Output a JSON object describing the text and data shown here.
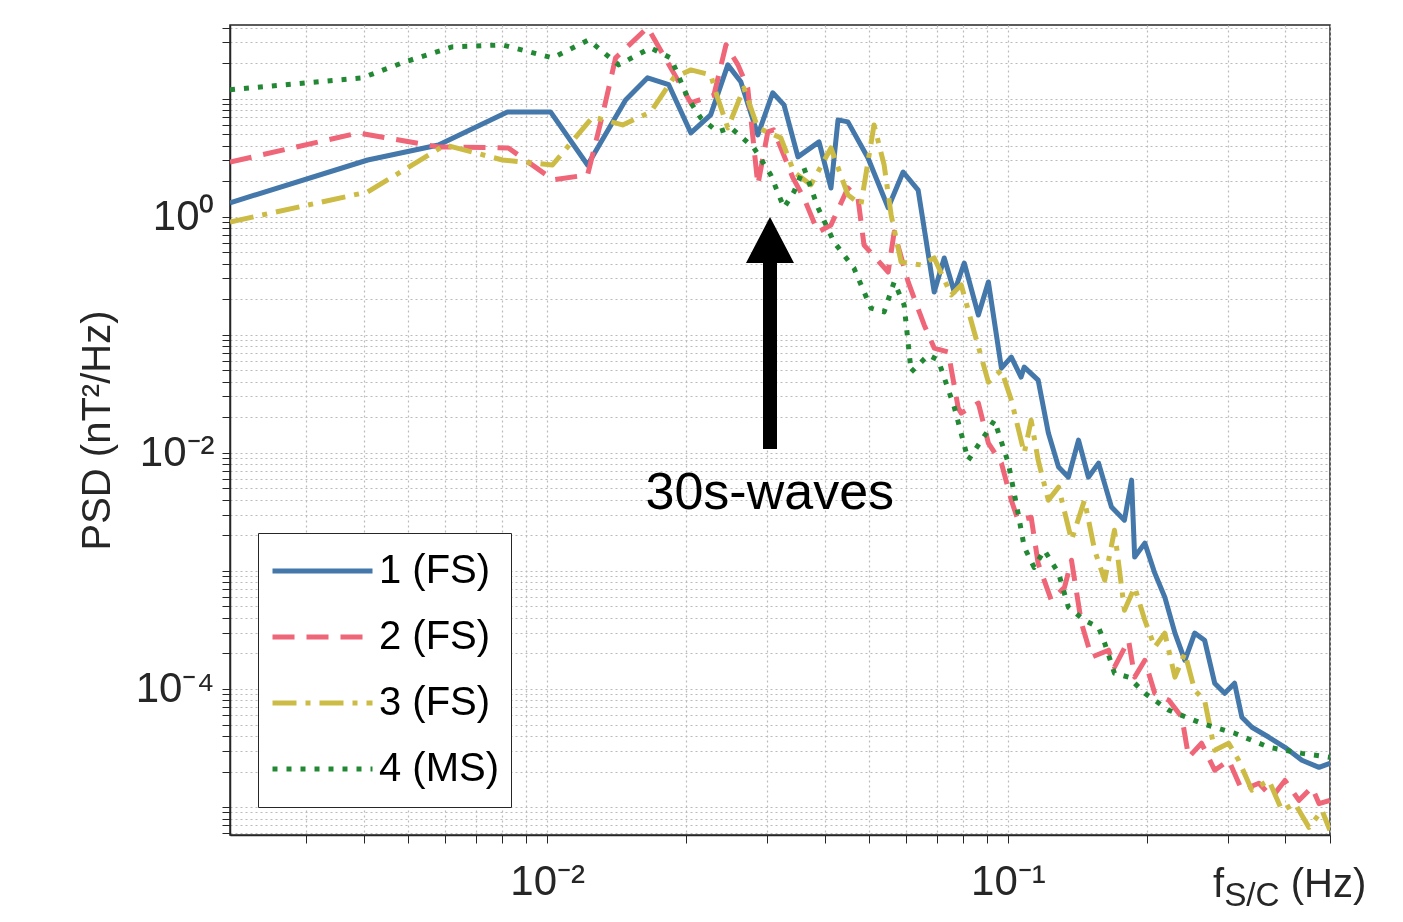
{
  "chart_data": {
    "type": "line",
    "ylabel": "PSD (nT²/Hz)",
    "xlabel": "f$_{S/C}$ (Hz)",
    "log": "xy",
    "grid": true,
    "legend": "bottom left",
    "xlim": [
      0.00205,
      0.5
    ],
    "ylim": [
      5.8e-06,
      42
    ],
    "xticks": [
      {
        "value": 0.003,
        "label": null
      },
      {
        "value": 0.004,
        "label": null
      },
      {
        "value": 0.005,
        "label": null
      },
      {
        "value": 0.006,
        "label": null
      },
      {
        "value": 0.007,
        "label": null
      },
      {
        "value": 0.008,
        "label": null
      },
      {
        "value": 0.009,
        "label": null
      },
      {
        "value": 0.01,
        "label": "10⁻²"
      },
      {
        "value": 0.02,
        "label": null
      },
      {
        "value": 0.03,
        "label": null
      },
      {
        "value": 0.04,
        "label": null
      },
      {
        "value": 0.05,
        "label": null
      },
      {
        "value": 0.06,
        "label": null
      },
      {
        "value": 0.07,
        "label": null
      },
      {
        "value": 0.08,
        "label": null
      },
      {
        "value": 0.09,
        "label": null
      },
      {
        "value": 0.1,
        "label": "10⁻¹"
      },
      {
        "value": 0.2,
        "label": null
      },
      {
        "value": 0.3,
        "label": null
      },
      {
        "value": 0.4,
        "label": null
      },
      {
        "value": 0.5,
        "label": null
      }
    ],
    "yticks": [
      {
        "value": 6e-06,
        "label": null
      },
      {
        "value": 7e-06,
        "label": null
      },
      {
        "value": 8e-06,
        "label": null
      },
      {
        "value": 9e-06,
        "label": null
      },
      {
        "value": 1e-05,
        "label": null
      },
      {
        "value": 2e-05,
        "label": null
      },
      {
        "value": 3e-05,
        "label": null
      },
      {
        "value": 4e-05,
        "label": null
      },
      {
        "value": 5e-05,
        "label": null
      },
      {
        "value": 6e-05,
        "label": null
      },
      {
        "value": 7e-05,
        "label": null
      },
      {
        "value": 8e-05,
        "label": null
      },
      {
        "value": 9e-05,
        "label": null
      },
      {
        "value": 0.0001,
        "label": "10⁻⁴"
      },
      {
        "value": 0.0002,
        "label": null
      },
      {
        "value": 0.0003,
        "label": null
      },
      {
        "value": 0.0004,
        "label": null
      },
      {
        "value": 0.0005,
        "label": null
      },
      {
        "value": 0.0006,
        "label": null
      },
      {
        "value": 0.0007,
        "label": null
      },
      {
        "value": 0.0008,
        "label": null
      },
      {
        "value": 0.0009,
        "label": null
      },
      {
        "value": 0.001,
        "label": null
      },
      {
        "value": 0.002,
        "label": null
      },
      {
        "value": 0.003,
        "label": null
      },
      {
        "value": 0.004,
        "label": null
      },
      {
        "value": 0.005,
        "label": null
      },
      {
        "value": 0.006,
        "label": null
      },
      {
        "value": 0.007,
        "label": null
      },
      {
        "value": 0.008,
        "label": null
      },
      {
        "value": 0.009,
        "label": null
      },
      {
        "value": 0.01,
        "label": "10⁻²"
      },
      {
        "value": 0.02,
        "label": null
      },
      {
        "value": 0.03,
        "label": null
      },
      {
        "value": 0.04,
        "label": null
      },
      {
        "value": 0.05,
        "label": null
      },
      {
        "value": 0.06,
        "label": null
      },
      {
        "value": 0.07,
        "label": null
      },
      {
        "value": 0.08,
        "label": null
      },
      {
        "value": 0.09,
        "label": null
      },
      {
        "value": 0.1,
        "label": null
      },
      {
        "value": 0.2,
        "label": null
      },
      {
        "value": 0.3,
        "label": null
      },
      {
        "value": 0.4,
        "label": null
      },
      {
        "value": 0.5,
        "label": null
      },
      {
        "value": 0.6,
        "label": null
      },
      {
        "value": 0.7,
        "label": null
      },
      {
        "value": 0.8,
        "label": null
      },
      {
        "value": 0.9,
        "label": null
      },
      {
        "value": 1,
        "label": "10⁰"
      },
      {
        "value": 2,
        "label": null
      },
      {
        "value": 3,
        "label": null
      },
      {
        "value": 4,
        "label": null
      },
      {
        "value": 5,
        "label": null
      },
      {
        "value": 6,
        "label": null
      },
      {
        "value": 7,
        "label": null
      },
      {
        "value": 8,
        "label": null
      },
      {
        "value": 9,
        "label": null
      },
      {
        "value": 10,
        "label": null
      },
      {
        "value": 20,
        "label": null
      },
      {
        "value": 30,
        "label": null
      },
      {
        "value": 40,
        "label": null
      }
    ],
    "annotations": [
      "30s-waves"
    ],
    "series": [
      {
        "name": "1 (FS)",
        "color": "#4477aa",
        "line_style": "solid",
        "x": [
          0.00205,
          0.00408,
          0.00581,
          0.0082,
          0.01017,
          0.01224,
          0.0148,
          0.01652,
          0.01836,
          0.02051,
          0.02264,
          0.02467,
          0.02632,
          0.02866,
          0.03087,
          0.03266,
          0.03502,
          0.03891,
          0.0413,
          0.04278,
          0.04495,
          0.0497,
          0.05497,
          0.05923,
          0.06385,
          0.06919,
          0.07274,
          0.07648,
          0.08039,
          0.08627,
          0.09069,
          0.0968,
          0.1017,
          0.1068,
          0.1085,
          0.1163,
          0.1224,
          0.1288,
          0.1353,
          0.1423,
          0.1495,
          0.1573,
          0.1678,
          0.179,
          0.1855,
          0.1884,
          0.1982,
          0.2083,
          0.219,
          0.2304,
          0.2421,
          0.2543,
          0.2672,
          0.281,
          0.2954,
          0.3104,
          0.3219,
          0.3384,
          0.3685,
          0.3992,
          0.4345,
          0.4733,
          0.4998
        ],
        "values": [
          1.31,
          3.02,
          4.05,
          7.71,
          7.71,
          2.74,
          9.75,
          15.0,
          13.1,
          5.12,
          7.28,
          19.3,
          13.9,
          4.92,
          11.2,
          8.85,
          3.21,
          4.3,
          1.75,
          6.6,
          6.35,
          3.14,
          1.19,
          2.39,
          1.68,
          0.23,
          0.447,
          0.23,
          0.405,
          0.147,
          0.28,
          0.0522,
          0.0647,
          0.0438,
          0.0532,
          0.0413,
          0.0147,
          0.00757,
          0.00622,
          0.0128,
          0.00622,
          0.00818,
          0.00347,
          0.00269,
          0.00587,
          0.00131,
          0.00172,
          0.000957,
          0.000599,
          0.000297,
          0.000175,
          0.000297,
          0.000259,
          0.000112,
          9.2e-05,
          0.000112,
          5.76e-05,
          4.74e-05,
          3.9e-05,
          3.21e-05,
          2.49e-05,
          2.17e-05,
          2.35e-05
        ]
      },
      {
        "name": "2 (FS)",
        "color": "#ee6677",
        "line_style": "dashed",
        "x": [
          0.00205,
          0.00389,
          0.00581,
          0.00824,
          0.01031,
          0.01224,
          0.01319,
          0.01408,
          0.01652,
          0.02051,
          0.02301,
          0.02444,
          0.02595,
          0.02725,
          0.02866,
          0.03012,
          0.03102,
          0.03415,
          0.03608,
          0.03871,
          0.0413,
          0.04495,
          0.04726,
          0.04872,
          0.05497,
          0.05664,
          0.06074,
          0.0658,
          0.06919,
          0.07421,
          0.07802,
          0.0792,
          0.08627,
          0.09069,
          0.0968,
          0.1017,
          0.1052,
          0.1123,
          0.1163,
          0.1242,
          0.1327,
          0.1374,
          0.1444,
          0.1519,
          0.1654,
          0.1703,
          0.1827,
          0.1884,
          0.1982,
          0.2083,
          0.2235,
          0.2385,
          0.2467,
          0.2632,
          0.281,
          0.3014,
          0.3219,
          0.3505,
          0.3741,
          0.3992,
          0.4282,
          0.4569,
          0.4733,
          0.4998
        ],
        "values": [
          2.9,
          5.12,
          3.9,
          3.82,
          2.05,
          2.26,
          7.28,
          22.1,
          40,
          9.19,
          10.7,
          28.5,
          19.3,
          12.3,
          1.86,
          5.22,
          5.43,
          2.13,
          1.44,
          0.741,
          0.849,
          1.75,
          1.44,
          0.575,
          0.34,
          0.741,
          0.28,
          0.121,
          0.0771,
          0.0713,
          0.0239,
          0.0217,
          0.0264,
          0.0121,
          0.00818,
          0.00397,
          0.00269,
          0.00285,
          0.00116,
          0.000565,
          0.000728,
          0.00123,
          0.000361,
          0.000186,
          0.000213,
          0.000153,
          0.000259,
          0.000126,
          0.000175,
          9.2e-05,
          8.02e-05,
          5.76e-05,
          2.64e-05,
          3.47e-05,
          2.05e-05,
          2.49e-05,
          1.39e-05,
          1.59e-05,
          1.21e-05,
          1.68e-05,
          1.14e-05,
          1.47e-05,
          1.07e-05,
          1.14e-05
        ]
      },
      {
        "name": "3 (FS)",
        "color": "#ccbb44",
        "line_style": "dashdot",
        "x": [
          0.00205,
          0.00408,
          0.00601,
          0.008,
          0.01027,
          0.01256,
          0.01458,
          0.01678,
          0.01882,
          0.02051,
          0.02264,
          0.02345,
          0.02467,
          0.02673,
          0.02866,
          0.03215,
          0.03432,
          0.03736,
          0.0413,
          0.04495,
          0.04797,
          0.05122,
          0.05387,
          0.0558,
          0.05864,
          0.06482,
          0.06919,
          0.07534,
          0.0792,
          0.08453,
          0.09069,
          0.0968,
          0.1017,
          0.1085,
          0.1123,
          0.1163,
          0.1224,
          0.1288,
          0.1374,
          0.1466,
          0.1542,
          0.1622,
          0.1703,
          0.179,
          0.1884,
          0.1982,
          0.2083,
          0.219,
          0.2304,
          0.2421,
          0.2543,
          0.2672,
          0.281,
          0.3014,
          0.3167,
          0.3384,
          0.3685,
          0.3932,
          0.4197,
          0.4501,
          0.4804,
          0.4998
        ],
        "values": [
          0.901,
          1.62,
          4.05,
          3.02,
          2.74,
          7.0,
          5.98,
          7.71,
          15.0,
          17.5,
          15.9,
          10.1,
          5.65,
          12.3,
          5.65,
          4.65,
          2.39,
          1.86,
          3.82,
          1.53,
          1.26,
          5.98,
          2.74,
          1.03,
          0.413,
          0.39,
          0.447,
          0.217,
          0.264,
          0.105,
          0.0397,
          0.0502,
          0.028,
          0.00995,
          0.0189,
          0.00867,
          0.00397,
          0.00512,
          0.00182,
          0.00397,
          0.0015,
          0.000834,
          0.00221,
          0.000465,
          0.000728,
          0.000382,
          0.000226,
          0.000297,
          0.000126,
          0.000201,
          9.75e-05,
          8.02e-05,
          3.03e-05,
          3.47e-05,
          2.49e-05,
          1.39e-05,
          1.68e-05,
          9.37e-06,
          1.07e-05,
          6.73e-06,
          9.37e-06,
          6.35e-06
        ]
      },
      {
        "name": "4 (MS)",
        "color": "#228833",
        "line_style": "dotted",
        "x": [
          0.00205,
          0.00397,
          0.00492,
          0.00622,
          0.008,
          0.01027,
          0.0123,
          0.01429,
          0.01678,
          0.01855,
          0.0202,
          0.02155,
          0.02345,
          0.02505,
          0.0281,
          0.03056,
          0.03266,
          0.03432,
          0.03608,
          0.03871,
          0.04192,
          0.04632,
          0.05045,
          0.05387,
          0.05664,
          0.05953,
          0.06167,
          0.06713,
          0.07058,
          0.07648,
          0.08201,
          0.09069,
          0.09346,
          0.1002,
          0.1052,
          0.1085,
          0.114,
          0.1199,
          0.1288,
          0.1353,
          0.1466,
          0.1573,
          0.1622,
          0.1703,
          0.1827,
          0.1982,
          0.2235,
          0.2632,
          0.3104,
          0.3685,
          0.4345,
          0.4998
        ],
        "values": [
          11.9,
          15.0,
          20.5,
          27.4,
          28.5,
          22.1,
          31.4,
          19.3,
          26.9,
          22.1,
          10.1,
          6.86,
          5.22,
          5.65,
          3.82,
          2.26,
          1.19,
          1.62,
          2.59,
          1.19,
          0.611,
          0.367,
          0.168,
          0.156,
          0.28,
          0.179,
          0.0483,
          0.0673,
          0.0611,
          0.0244,
          0.00867,
          0.0156,
          0.0189,
          0.00818,
          0.00308,
          0.00159,
          0.00107,
          0.0015,
          0.000957,
          0.000492,
          0.000382,
          0.000333,
          0.000244,
          0.000136,
          0.000126,
          9.2e-05,
          6.61e-05,
          5.12e-05,
          4.22e-05,
          3.21e-05,
          2.85e-05,
          2.64e-05
        ]
      }
    ]
  }
}
